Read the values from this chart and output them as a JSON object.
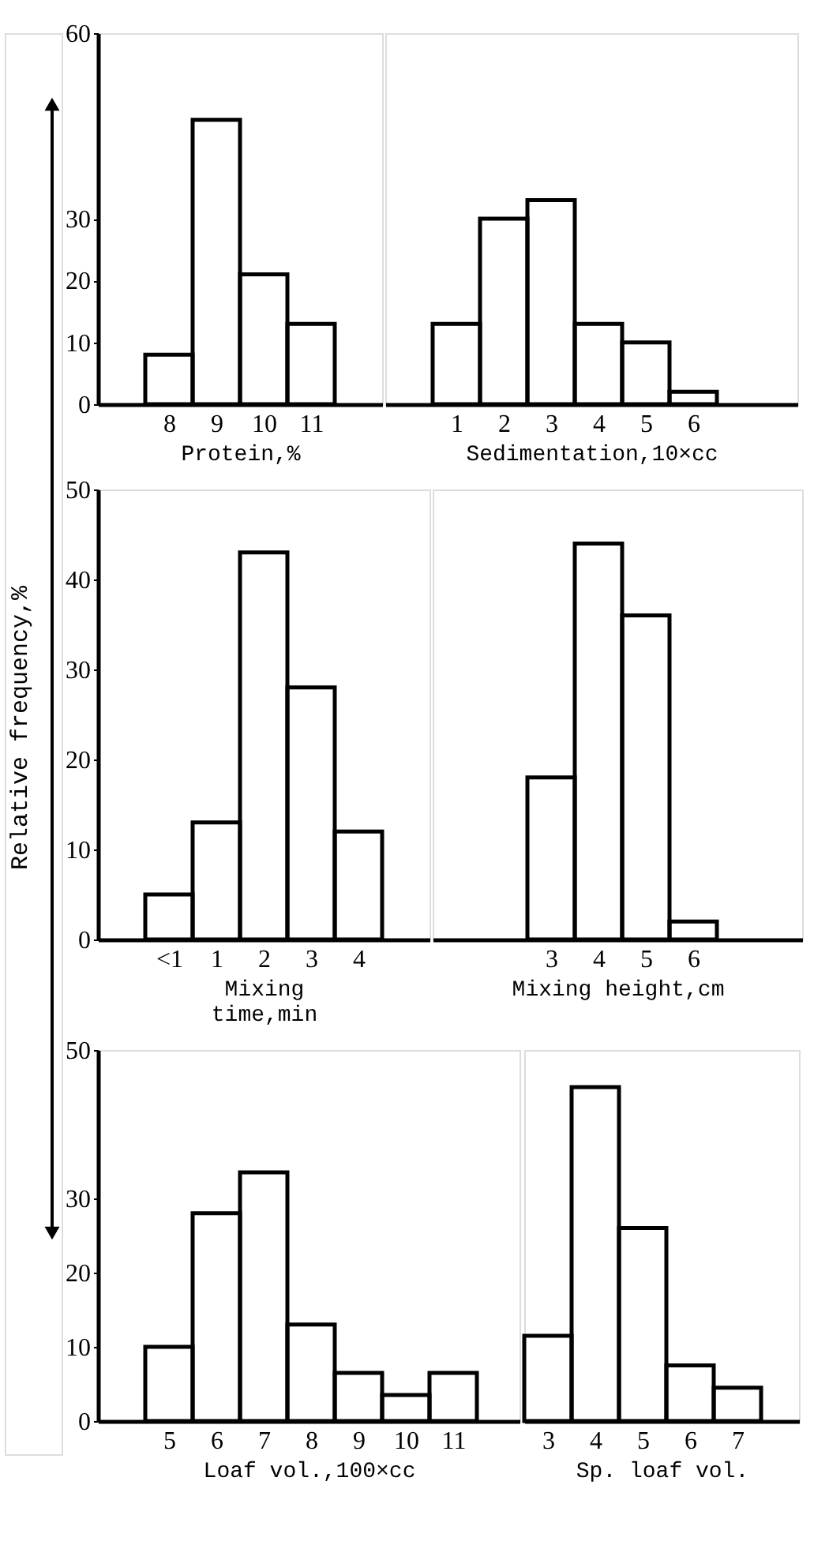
{
  "chart_data": [
    {
      "type": "histogram",
      "bins": [
        7.5,
        8.5,
        9.5,
        10.5,
        11.5
      ],
      "values": [
        8,
        46,
        21,
        13
      ],
      "color": "#000000",
      "xlim": [
        6.5,
        12.5
      ],
      "xticks": [
        8,
        9,
        10,
        11
      ],
      "ylim": [
        0,
        60
      ],
      "yticks": [
        0,
        10,
        20,
        30,
        60
      ],
      "xlabel": "Protein,%"
    },
    {
      "type": "histogram",
      "bins": [
        0.5,
        1.5,
        2.5,
        3.5,
        4.5,
        5.5,
        6.5
      ],
      "values": [
        13,
        30,
        33,
        13,
        10,
        2
      ],
      "color": "#000000",
      "xlim": [
        -0.5,
        8.2
      ],
      "xticks": [
        1,
        2,
        3,
        4,
        5,
        6
      ],
      "ylim": [
        0,
        60
      ],
      "xlabel": "Sedimentation,10×cc",
      "tick_labels": "x"
    },
    {
      "type": "histogram",
      "bins": [
        -0.5,
        0.5,
        1.5,
        2.5,
        3.5,
        4.5
      ],
      "values": [
        5,
        13,
        43,
        28,
        12
      ],
      "color": "#000000",
      "xlim": [
        -1.5,
        5.5
      ],
      "xticks": [
        {
          "value": 0,
          "label": "<1"
        },
        1,
        2,
        3,
        4
      ],
      "ylim": [
        0,
        50
      ],
      "yticks": [
        0,
        10,
        20,
        30,
        40,
        50
      ],
      "xlabel": "Mixing\ntime,min",
      "ylabel": "Relative frequency,%"
    },
    {
      "type": "histogram",
      "bins": [
        2.5,
        3.5,
        4.5,
        5.5,
        6.5
      ],
      "values": [
        18,
        44,
        36,
        2
      ],
      "color": "#000000",
      "xlim": [
        0.5,
        8.3
      ],
      "xticks": [
        3,
        4,
        5,
        6
      ],
      "ylim": [
        0,
        50
      ],
      "xlabel": "Mixing height,cm",
      "tick_labels": "x"
    },
    {
      "type": "histogram",
      "bins": [
        4.5,
        5.5,
        6.5,
        7.5,
        8.5,
        9.5,
        10.5,
        11.5
      ],
      "values": [
        10,
        28,
        33.5,
        13,
        6.5,
        3.5,
        6.5
      ],
      "color": "#000000",
      "xlim": [
        3.5,
        12.4
      ],
      "xticks": [
        5,
        6,
        7,
        8,
        9,
        10,
        11
      ],
      "ylim": [
        0,
        50
      ],
      "yticks": [
        0,
        10,
        20,
        30,
        50
      ],
      "xlabel": "Loaf vol.,100×cc"
    },
    {
      "type": "histogram",
      "bins": [
        2.5,
        3.5,
        4.5,
        5.5,
        6.5,
        7.5
      ],
      "values": [
        11.5,
        45,
        26,
        7.5,
        4.5
      ],
      "color": "#000000",
      "xlim": [
        2.5,
        8.3
      ],
      "xticks": [
        3,
        4,
        5,
        6,
        7
      ],
      "ylim": [
        0,
        50
      ],
      "xlabel": "Sp. loaf vol.",
      "tick_labels": "x"
    }
  ]
}
